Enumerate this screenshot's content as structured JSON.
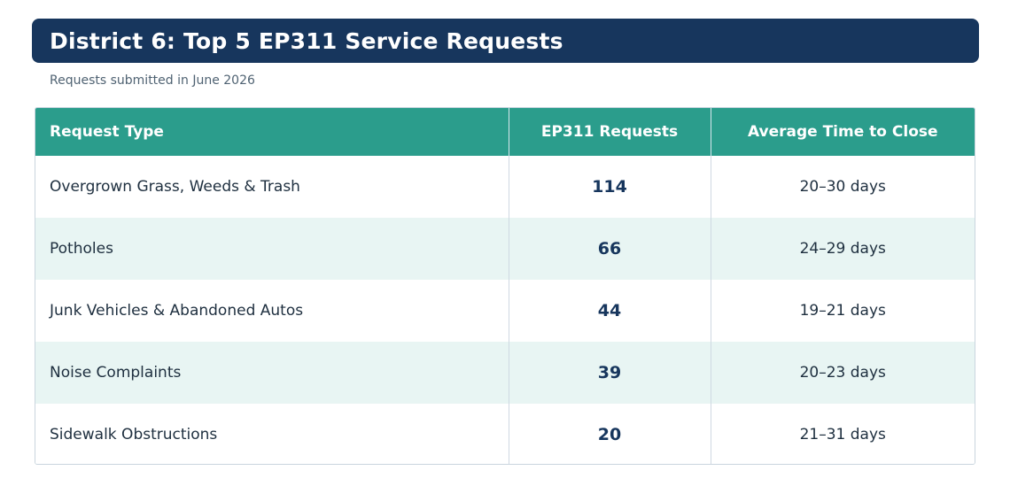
{
  "title": "District 6: Top 5 EP311 Service Requests",
  "subtitle": "Requests submitted in June 2026",
  "colors": {
    "title_bar": "#17365d",
    "header": "#2b9d8c",
    "row_alt": "#e8f5f3",
    "count_text": "#17365d"
  },
  "chart_data": {
    "type": "table",
    "title": "District 6: Top 5 EP311 Service Requests",
    "subtitle": "Requests submitted in June 2026",
    "columns": [
      "Request Type",
      "EP311 Requests",
      "Average Time to Close"
    ],
    "rows": [
      {
        "type": "Overgrown Grass, Weeds & Trash",
        "requests": "114",
        "time": "20–30 days"
      },
      {
        "type": "Potholes",
        "requests": "66",
        "time": "24–29 days"
      },
      {
        "type": "Junk Vehicles & Abandoned Autos",
        "requests": "44",
        "time": "19–21 days"
      },
      {
        "type": "Noise Complaints",
        "requests": "39",
        "time": "20–23 days"
      },
      {
        "type": "Sidewalk Obstructions",
        "requests": "20",
        "time": "21–31 days"
      }
    ]
  }
}
